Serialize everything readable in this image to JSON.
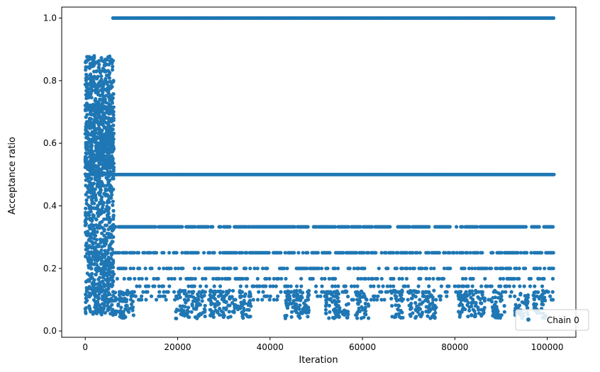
{
  "chart_data": {
    "type": "scatter",
    "xlabel": "Iteration",
    "ylabel": "Acceptance ratio",
    "xlim": [
      -5100,
      106200
    ],
    "ylim": [
      -0.02,
      1.035
    ],
    "x_ticks": [
      0,
      20000,
      40000,
      60000,
      80000,
      100000
    ],
    "y_ticks": [
      0.0,
      0.2,
      0.4,
      0.6,
      0.8,
      1.0
    ],
    "x_tick_labels": [
      "0",
      "20000",
      "40000",
      "60000",
      "80000",
      "100000"
    ],
    "y_tick_labels": [
      "0.0",
      "0.2",
      "0.4",
      "0.6",
      "0.8",
      "1.0"
    ],
    "grid": false,
    "legend_position": "lower-right",
    "series": [
      {
        "name": "Chain 0",
        "color": "#1f77b4",
        "marker": "circle",
        "summary": {
          "burn_in_range": [
            0,
            6200
          ],
          "burn_in_value_range": [
            0.03,
            0.88
          ],
          "stable_levels": [
            1.0,
            0.5,
            0.333,
            0.25,
            0.2,
            0.167,
            0.143,
            0.125,
            0.111,
            0.1
          ],
          "x_max": 101500
        }
      }
    ]
  },
  "legend": {
    "entries": [
      {
        "label": "Chain 0",
        "color": "#1f77b4"
      }
    ]
  }
}
